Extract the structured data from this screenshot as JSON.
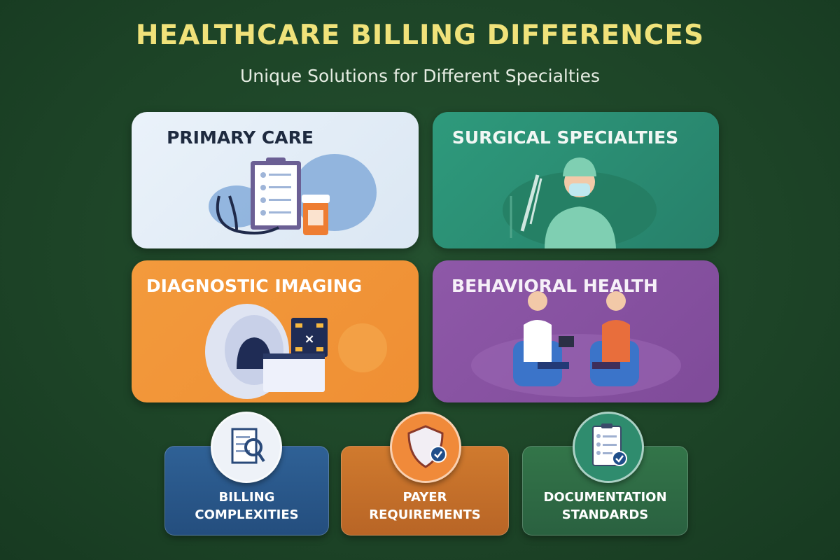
{
  "header": {
    "title": "HEALTHCARE BILLING DIFFERENCES",
    "subtitle": "Unique Solutions for Different Specialties"
  },
  "specialties": [
    {
      "label": "PRIMARY CARE",
      "color": "#e4eef8",
      "icon": "clipboard-stethoscope-icon"
    },
    {
      "label": "SURGICAL SPECIALTIES",
      "color": "#2f9478",
      "icon": "surgeon-icon"
    },
    {
      "label": "DIAGNOSTIC IMAGING",
      "color": "#f2963a",
      "icon": "mri-scanner-icon"
    },
    {
      "label": "BEHAVIORAL HEALTH",
      "color": "#8a55a3",
      "icon": "therapy-session-icon"
    }
  ],
  "factors": [
    {
      "line1": "BILLING",
      "line2": "COMPLEXITIES",
      "color": "#2b5a8a",
      "icon": "document-magnifier-icon"
    },
    {
      "line1": "PAYER",
      "line2": "REQUIREMENTS",
      "color": "#c9742c",
      "icon": "shield-check-icon"
    },
    {
      "line1": "DOCUMENTATION",
      "line2": "STANDARDS",
      "color": "#2f6b45",
      "icon": "checklist-clipboard-icon"
    }
  ]
}
